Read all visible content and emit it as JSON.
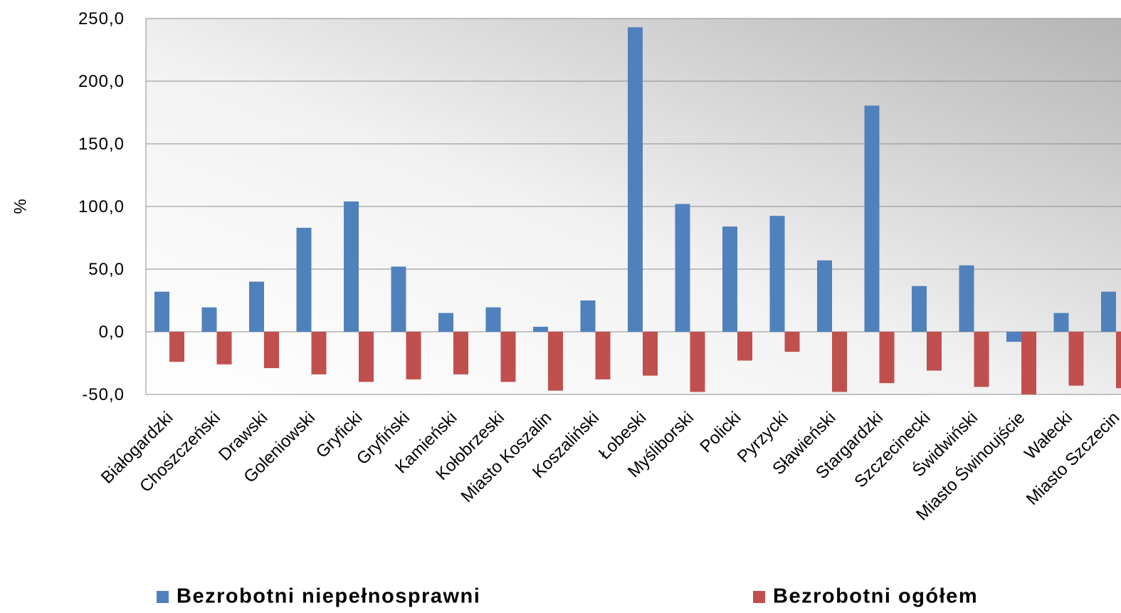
{
  "chart_data": {
    "type": "bar",
    "y_label": "%",
    "categories": [
      "Białogardzki",
      "Choszczeński",
      "Drawski",
      "Goleniowski",
      "Gryficki",
      "Gryfiński",
      "Kamieński",
      "Kołobrzeski",
      "Miasto Koszalin",
      "Koszaliński",
      "Łobeski",
      "Myśliborski",
      "Policki",
      "Pyrzycki",
      "Sławieński",
      "Stargardzki",
      "Szczecinecki",
      "Świdwiński",
      "Miasto Świnoujście",
      "Wałecki",
      "Miasto Szczecin"
    ],
    "series": [
      {
        "name": "Bezrobotni niepełnosprawni",
        "color": "#4f81bd",
        "values": [
          32,
          19.5,
          40,
          83,
          104,
          52,
          15,
          19.5,
          4,
          25,
          243,
          102,
          84,
          92.5,
          57,
          180.5,
          36.5,
          53,
          -8,
          15,
          32
        ]
      },
      {
        "name": "Bezrobotni ogółem",
        "color": "#c0504d",
        "values": [
          -24,
          -26,
          -29,
          -34,
          -40,
          -38,
          -34,
          -40,
          -47,
          -38,
          -35,
          -48,
          -23,
          -16,
          -48,
          -41,
          -31,
          -44,
          -50,
          -43,
          -45
        ]
      }
    ],
    "ylim": [
      -50,
      250
    ],
    "yticks": [
      {
        "value": -50,
        "label": "-50,0"
      },
      {
        "value": 0,
        "label": "0,0"
      },
      {
        "value": 50,
        "label": "50,0"
      },
      {
        "value": 100,
        "label": "100,0"
      },
      {
        "value": 150,
        "label": "150,0"
      },
      {
        "value": 200,
        "label": "200,0"
      },
      {
        "value": 250,
        "label": "250,0"
      }
    ],
    "grid": true,
    "legend": "bottom"
  }
}
